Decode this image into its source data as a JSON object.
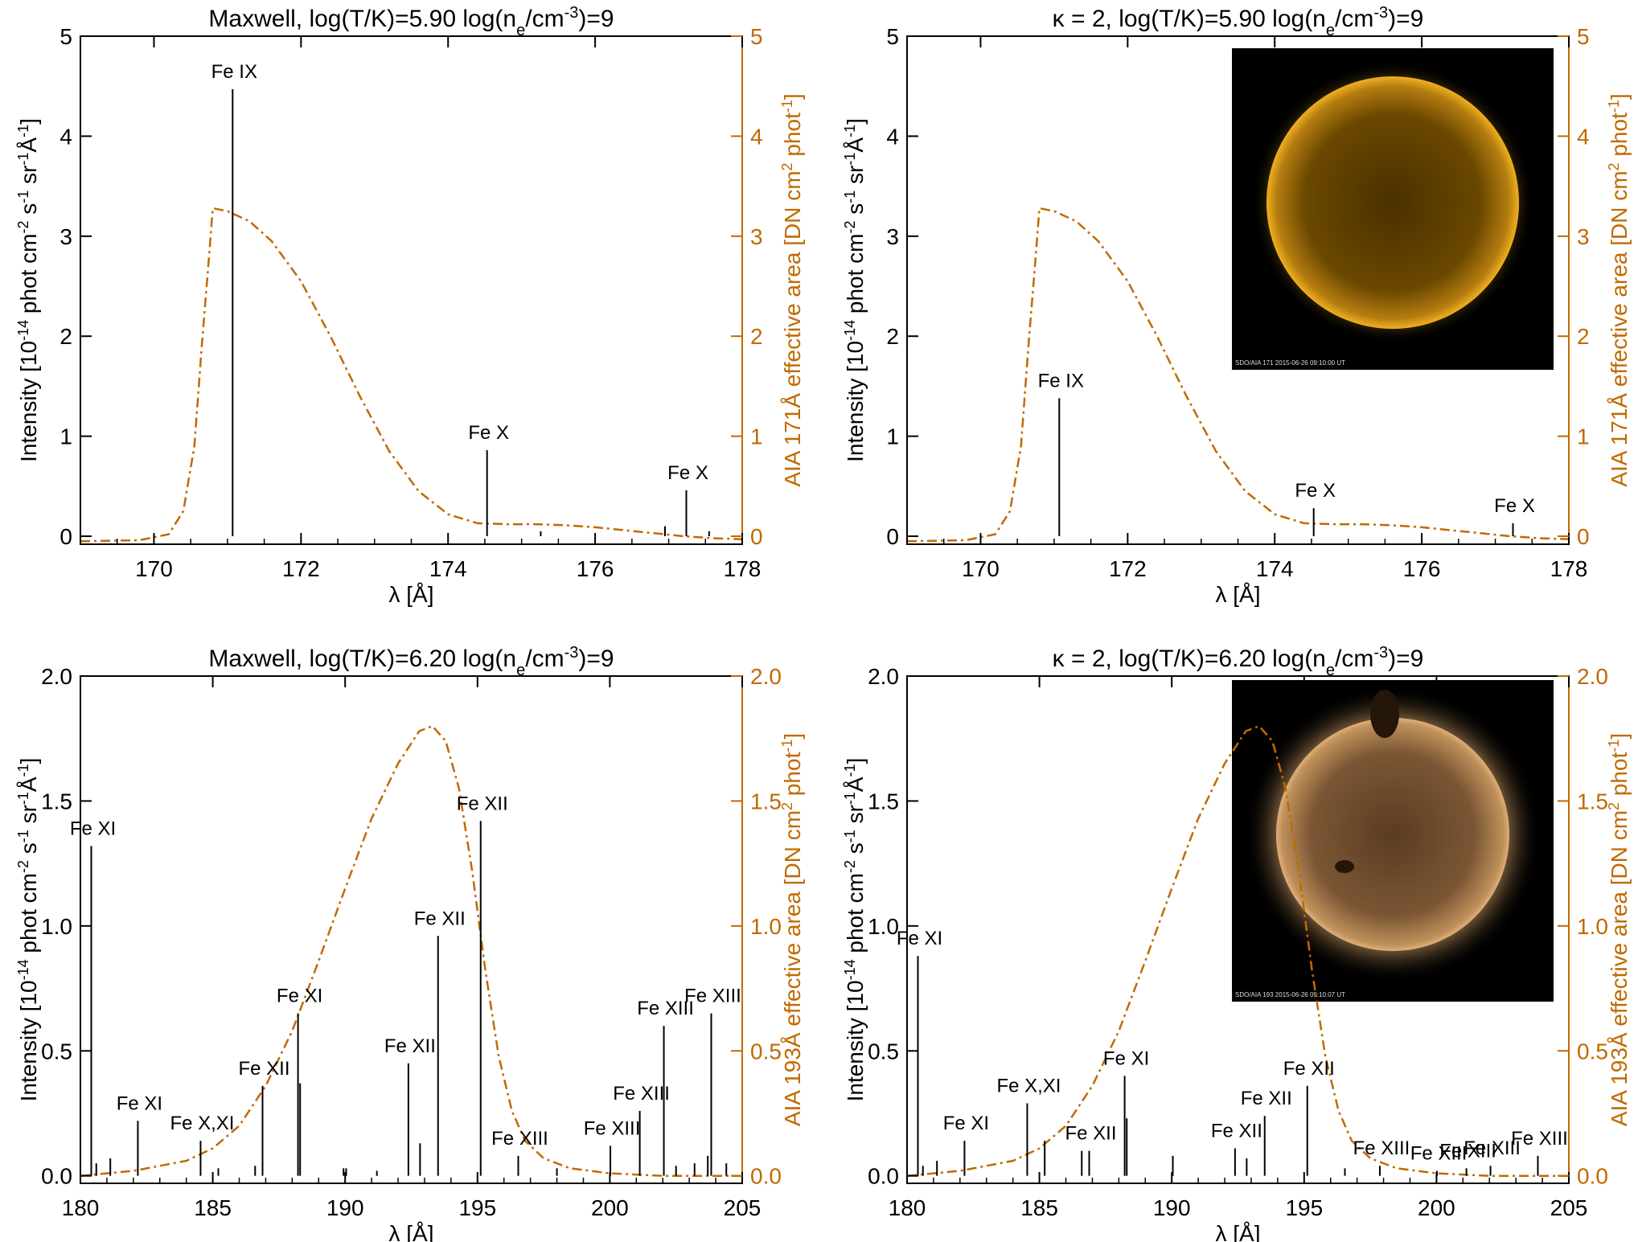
{
  "chart_data": [
    {
      "type": "line",
      "title": "Maxwell,  log(T/K)=5.90  log(n_e/cm^-3)=9",
      "title_parts": {
        "lead": "Maxwell,",
        "temp": "log(T/K)=5.90",
        "dens_pre": "log(n",
        "dens_sub": "e",
        "dens_mid": "/cm",
        "dens_sup": "-3",
        "dens_post": ")=9"
      },
      "xlabel": "λ [Å]",
      "ylabel_left": "Intensity [10^-14 phot cm^-2 s^-1 sr^-1 Å^-1]",
      "ylabel_right": "AIA 171Å  effective area [DN cm^2 phot^-1]",
      "xlim": [
        169,
        178
      ],
      "ylim": [
        -0.08,
        5
      ],
      "y2lim": [
        -0.08,
        5
      ],
      "xticks": [
        "170",
        "172",
        "174",
        "176",
        "178"
      ],
      "yticks": [
        "0",
        "1",
        "2",
        "3",
        "4",
        "5"
      ],
      "y2ticks": [
        "0",
        "1",
        "2",
        "3",
        "4",
        "5"
      ],
      "lines": [
        {
          "x": 171.07,
          "y": 4.47,
          "label": "Fe IX"
        },
        {
          "x": 174.53,
          "y": 0.86,
          "label": "Fe X"
        },
        {
          "x": 177.24,
          "y": 0.46,
          "label": "Fe X"
        },
        {
          "x": 176.95,
          "y": 0.1
        },
        {
          "x": 175.26,
          "y": 0.05
        },
        {
          "x": 177.55,
          "y": 0.05
        }
      ],
      "effective_area": {
        "x": [
          169,
          169.8,
          170.2,
          170.4,
          170.55,
          170.65,
          170.75,
          170.8,
          171,
          171.3,
          171.6,
          172,
          172.4,
          172.8,
          173.2,
          173.6,
          174,
          174.4,
          174.8,
          175.2,
          175.6,
          176,
          176.4,
          176.8,
          177.2,
          177.6,
          178
        ],
        "y": [
          -0.05,
          -0.04,
          0.02,
          0.25,
          0.9,
          1.9,
          2.8,
          3.28,
          3.25,
          3.15,
          2.95,
          2.55,
          2.0,
          1.4,
          0.85,
          0.45,
          0.22,
          0.13,
          0.12,
          0.12,
          0.11,
          0.09,
          0.06,
          0.03,
          0.0,
          -0.02,
          -0.03
        ]
      },
      "inset": null
    },
    {
      "type": "line",
      "title": "κ = 2,  log(T/K)=5.90  log(n_e/cm^-3)=9",
      "title_parts": {
        "lead": "κ  =  2,",
        "temp": "log(T/K)=5.90",
        "dens_pre": "log(n",
        "dens_sub": "e",
        "dens_mid": "/cm",
        "dens_sup": "-3",
        "dens_post": ")=9"
      },
      "xlabel": "λ [Å]",
      "ylabel_left": "Intensity [10^-14 phot cm^-2 s^-1 sr^-1 Å^-1]",
      "ylabel_right": "AIA 171Å  effective area [DN cm^2 phot^-1]",
      "xlim": [
        169,
        178
      ],
      "ylim": [
        -0.08,
        5
      ],
      "y2lim": [
        -0.08,
        5
      ],
      "xticks": [
        "170",
        "172",
        "174",
        "176",
        "178"
      ],
      "yticks": [
        "0",
        "1",
        "2",
        "3",
        "4",
        "5"
      ],
      "y2ticks": [
        "0",
        "1",
        "2",
        "3",
        "4",
        "5"
      ],
      "lines": [
        {
          "x": 171.07,
          "y": 1.38,
          "label": "Fe IX"
        },
        {
          "x": 174.53,
          "y": 0.28,
          "label": "Fe X"
        },
        {
          "x": 177.24,
          "y": 0.13,
          "label": "Fe X"
        }
      ],
      "effective_area": {
        "x": [
          169,
          169.8,
          170.2,
          170.4,
          170.55,
          170.65,
          170.75,
          170.8,
          171,
          171.3,
          171.6,
          172,
          172.4,
          172.8,
          173.2,
          173.6,
          174,
          174.4,
          174.8,
          175.2,
          175.6,
          176,
          176.4,
          176.8,
          177.2,
          177.6,
          178
        ],
        "y": [
          -0.05,
          -0.04,
          0.02,
          0.25,
          0.9,
          1.9,
          2.8,
          3.28,
          3.25,
          3.15,
          2.95,
          2.55,
          2.0,
          1.4,
          0.85,
          0.45,
          0.22,
          0.13,
          0.12,
          0.12,
          0.11,
          0.09,
          0.06,
          0.03,
          0.0,
          -0.02,
          -0.03
        ]
      },
      "inset": {
        "caption": "SDO/AIA 171    2015-06-26 09:10:00 UT",
        "disk_color": "#6b4800",
        "limb_color": "#e3a418"
      }
    },
    {
      "type": "line",
      "title": "Maxwell,  log(T/K)=6.20  log(n_e/cm^-3)=9",
      "title_parts": {
        "lead": "Maxwell,",
        "temp": "log(T/K)=6.20",
        "dens_pre": "log(n",
        "dens_sub": "e",
        "dens_mid": "/cm",
        "dens_sup": "-3",
        "dens_post": ")=9"
      },
      "xlabel": "λ [Å]",
      "ylabel_left": "Intensity [10^-14 phot cm^-2 s^-1 sr^-1 Å^-1]",
      "ylabel_right": "AIA 193Å  effective area [DN cm^2 phot^-1]",
      "xlim": [
        180,
        205
      ],
      "ylim": [
        -0.03,
        2.0
      ],
      "y2lim": [
        -0.03,
        2.0
      ],
      "xticks": [
        "180",
        "185",
        "190",
        "195",
        "200",
        "205"
      ],
      "yticks": [
        "0.0",
        "0.5",
        "1.0",
        "1.5",
        "2.0"
      ],
      "y2ticks": [
        "0.0",
        "0.5",
        "1.0",
        "1.5",
        "2.0"
      ],
      "lines": [
        {
          "x": 180.41,
          "y": 1.32,
          "label": "Fe XI"
        },
        {
          "x": 182.17,
          "y": 0.22,
          "label": "Fe XI"
        },
        {
          "x": 184.54,
          "y": 0.14,
          "label": "Fe X,XI"
        },
        {
          "x": 186.88,
          "y": 0.36,
          "label": "Fe XII"
        },
        {
          "x": 188.22,
          "y": 0.65,
          "label": "Fe XI"
        },
        {
          "x": 188.3,
          "y": 0.37
        },
        {
          "x": 192.39,
          "y": 0.45,
          "label": "Fe XII"
        },
        {
          "x": 192.83,
          "y": 0.13
        },
        {
          "x": 193.51,
          "y": 0.96,
          "label": "Fe XII"
        },
        {
          "x": 195.12,
          "y": 1.42,
          "label": "Fe XII"
        },
        {
          "x": 196.54,
          "y": 0.08,
          "label": "Fe XIII"
        },
        {
          "x": 200.02,
          "y": 0.12,
          "label": "Fe XIII"
        },
        {
          "x": 201.13,
          "y": 0.26,
          "label": "Fe XIII"
        },
        {
          "x": 202.04,
          "y": 0.6,
          "label": "Fe XIII"
        },
        {
          "x": 203.83,
          "y": 0.65,
          "label": "Fe XIII"
        },
        {
          "x": 180.6,
          "y": 0.05
        },
        {
          "x": 181.13,
          "y": 0.07
        },
        {
          "x": 185.21,
          "y": 0.03
        },
        {
          "x": 186.6,
          "y": 0.04
        },
        {
          "x": 189.94,
          "y": 0.03
        },
        {
          "x": 190.04,
          "y": 0.03
        },
        {
          "x": 191.2,
          "y": 0.02
        },
        {
          "x": 198.0,
          "y": 0.03
        },
        {
          "x": 202.5,
          "y": 0.04
        },
        {
          "x": 203.2,
          "y": 0.05
        },
        {
          "x": 203.7,
          "y": 0.08
        },
        {
          "x": 204.4,
          "y": 0.05
        }
      ],
      "effective_area": {
        "x": [
          180,
          182,
          184,
          185,
          186,
          187,
          188,
          189,
          190,
          191,
          192,
          192.8,
          193.3,
          193.8,
          194.3,
          194.8,
          195.3,
          195.8,
          196.3,
          196.8,
          197.5,
          198.5,
          200,
          202,
          204,
          205
        ],
        "y": [
          0.0,
          0.02,
          0.06,
          0.11,
          0.2,
          0.36,
          0.58,
          0.86,
          1.15,
          1.43,
          1.65,
          1.78,
          1.8,
          1.74,
          1.55,
          1.22,
          0.82,
          0.48,
          0.26,
          0.14,
          0.07,
          0.03,
          0.01,
          0.0,
          0.0,
          0.0
        ]
      },
      "inset": null
    },
    {
      "type": "line",
      "title": "κ = 2,  log(T/K)=6.20  log(n_e/cm^-3)=9",
      "title_parts": {
        "lead": "κ  =  2,",
        "temp": "log(T/K)=6.20",
        "dens_pre": "log(n",
        "dens_sub": "e",
        "dens_mid": "/cm",
        "dens_sup": "-3",
        "dens_post": ")=9"
      },
      "xlabel": "λ [Å]",
      "ylabel_left": "Intensity [10^-14 phot cm^-2 s^-1 sr^-1 Å^-1]",
      "ylabel_right": "AIA 193Å  effective area [DN cm^2 phot^-1]",
      "xlim": [
        180,
        205
      ],
      "ylim": [
        -0.03,
        2.0
      ],
      "y2lim": [
        -0.03,
        2.0
      ],
      "xticks": [
        "180",
        "185",
        "190",
        "195",
        "200",
        "205"
      ],
      "yticks": [
        "0.0",
        "0.5",
        "1.0",
        "1.5",
        "2.0"
      ],
      "y2ticks": [
        "0.0",
        "0.5",
        "1.0",
        "1.5",
        "2.0"
      ],
      "lines": [
        {
          "x": 180.41,
          "y": 0.88,
          "label": "Fe XI"
        },
        {
          "x": 182.17,
          "y": 0.14,
          "label": "Fe XI"
        },
        {
          "x": 184.54,
          "y": 0.29,
          "label": "Fe X,XI"
        },
        {
          "x": 186.88,
          "y": 0.1,
          "label": "Fe XII"
        },
        {
          "x": 188.22,
          "y": 0.4,
          "label": "Fe XI"
        },
        {
          "x": 188.3,
          "y": 0.23
        },
        {
          "x": 192.39,
          "y": 0.11,
          "label": "Fe XII"
        },
        {
          "x": 193.51,
          "y": 0.24,
          "label": "Fe XII"
        },
        {
          "x": 195.12,
          "y": 0.36,
          "label": "Fe XII"
        },
        {
          "x": 197.86,
          "y": 0.04,
          "label": "Fe XIII"
        },
        {
          "x": 200.02,
          "y": 0.02,
          "label": "Fe XIII"
        },
        {
          "x": 201.13,
          "y": 0.03,
          "label": "Fe XIII"
        },
        {
          "x": 202.04,
          "y": 0.04,
          "label": "Fe XIII"
        },
        {
          "x": 203.83,
          "y": 0.08,
          "label": "Fe XIII"
        },
        {
          "x": 185.2,
          "y": 0.14
        },
        {
          "x": 186.6,
          "y": 0.1
        },
        {
          "x": 180.6,
          "y": 0.04
        },
        {
          "x": 181.13,
          "y": 0.06
        },
        {
          "x": 190.04,
          "y": 0.08
        },
        {
          "x": 192.83,
          "y": 0.07
        },
        {
          "x": 196.54,
          "y": 0.03
        }
      ],
      "effective_area": {
        "x": [
          180,
          182,
          184,
          185,
          186,
          187,
          188,
          189,
          190,
          191,
          192,
          192.8,
          193.3,
          193.8,
          194.3,
          194.8,
          195.3,
          195.8,
          196.3,
          196.8,
          197.5,
          198.5,
          200,
          202,
          204,
          205
        ],
        "y": [
          0.0,
          0.02,
          0.06,
          0.11,
          0.2,
          0.36,
          0.58,
          0.86,
          1.15,
          1.43,
          1.65,
          1.78,
          1.8,
          1.74,
          1.55,
          1.22,
          0.82,
          0.48,
          0.26,
          0.14,
          0.07,
          0.03,
          0.01,
          0.0,
          0.0,
          0.0
        ]
      },
      "inset": {
        "caption": "SDO/AIA 193    2015-06-26 09:10:07 UT",
        "disk_color": "#6a4a2c",
        "limb_color": "#d9a66a"
      }
    }
  ],
  "colors": {
    "spectrum": "#000000",
    "effective_area": "#c06a00",
    "right_axis": "#c06a00"
  }
}
